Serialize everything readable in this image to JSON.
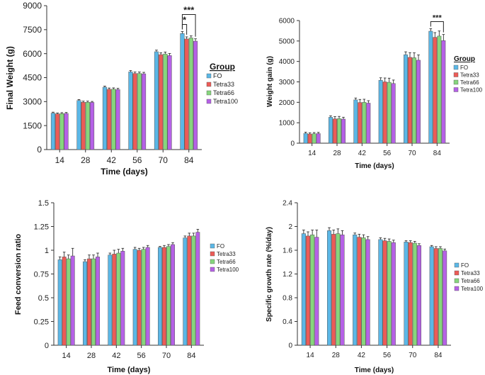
{
  "chart_data": [
    {
      "type": "bar",
      "ylabel": "Final Weight (g)",
      "xlabel": "Time (days)",
      "categories": [
        "14",
        "28",
        "42",
        "56",
        "70",
        "84"
      ],
      "ylim": [
        0,
        9000
      ],
      "yticks": [
        "0",
        "1500",
        "3000",
        "4500",
        "6000",
        "7500",
        "9000"
      ],
      "legend_title": "Group",
      "legend_position": "right",
      "series": [
        {
          "name": "FO",
          "color": "#5bb7e6",
          "values": [
            2280,
            3070,
            3900,
            4860,
            6120,
            7260
          ],
          "errors": [
            60,
            60,
            70,
            80,
            100,
            120
          ]
        },
        {
          "name": "Tetra33",
          "color": "#ec5b57",
          "values": [
            2230,
            2960,
            3770,
            4760,
            5940,
            6920
          ],
          "errors": [
            60,
            70,
            80,
            90,
            110,
            130
          ]
        },
        {
          "name": "Tetra66",
          "color": "#86d67d",
          "values": [
            2250,
            2960,
            3780,
            4760,
            5980,
            6980
          ],
          "errors": [
            60,
            70,
            80,
            90,
            120,
            130
          ]
        },
        {
          "name": "Tetra100",
          "color": "#b561e6",
          "values": [
            2260,
            2950,
            3750,
            4740,
            5880,
            6780
          ],
          "errors": [
            60,
            60,
            80,
            90,
            130,
            150
          ]
        }
      ],
      "annotations": [
        {
          "text": "*",
          "category": "84",
          "from_series": "FO",
          "to_series": "Tetra33"
        },
        {
          "text": "***",
          "category": "84",
          "from_series": "FO",
          "to_series": "Tetra100"
        }
      ]
    },
    {
      "type": "bar",
      "ylabel": "Weight gain (g)",
      "xlabel": "Time (days)",
      "categories": [
        "14",
        "28",
        "42",
        "56",
        "70",
        "84"
      ],
      "ylim": [
        0,
        6000
      ],
      "yticks": [
        "0",
        "1000",
        "2000",
        "3000",
        "4000",
        "5000",
        "6000"
      ],
      "legend_title": "Group",
      "legend_position": "right",
      "series": [
        {
          "name": "FO",
          "color": "#5bb7e6",
          "values": [
            480,
            1270,
            2120,
            3080,
            4330,
            5480
          ],
          "errors": [
            60,
            70,
            90,
            120,
            140,
            120
          ]
        },
        {
          "name": "Tetra33",
          "color": "#ec5b57",
          "values": [
            450,
            1190,
            1990,
            3000,
            4200,
            5180
          ],
          "errors": [
            60,
            110,
            150,
            190,
            230,
            230
          ]
        },
        {
          "name": "Tetra66",
          "color": "#86d67d",
          "values": [
            460,
            1200,
            2000,
            2980,
            4180,
            5240
          ],
          "errors": [
            60,
            110,
            150,
            200,
            240,
            250
          ]
        },
        {
          "name": "Tetra100",
          "color": "#b561e6",
          "values": [
            470,
            1180,
            1960,
            2920,
            4060,
            5020
          ],
          "errors": [
            60,
            90,
            120,
            170,
            260,
            300
          ]
        }
      ],
      "annotations": [
        {
          "text": "***",
          "category": "84",
          "from_series": "FO",
          "to_series": "Tetra100"
        }
      ]
    },
    {
      "type": "bar",
      "ylabel": "Feed conversion ratio",
      "xlabel": "Time (days)",
      "categories": [
        "14",
        "28",
        "42",
        "56",
        "70",
        "84"
      ],
      "ylim": [
        0,
        1.5
      ],
      "yticks": [
        "0",
        "0.25",
        "0.5",
        "0.75",
        "1",
        "1.25",
        "1.5"
      ],
      "legend_position": "right",
      "series": [
        {
          "name": "FO",
          "color": "#5bb7e6",
          "values": [
            0.9,
            0.88,
            0.95,
            1.01,
            1.03,
            1.13
          ],
          "errors": [
            0.03,
            0.02,
            0.02,
            0.02,
            0.01,
            0.02
          ]
        },
        {
          "name": "Tetra33",
          "color": "#ec5b57",
          "values": [
            0.93,
            0.91,
            0.96,
            1.0,
            1.03,
            1.15
          ],
          "errors": [
            0.05,
            0.04,
            0.04,
            0.02,
            0.02,
            0.03
          ]
        },
        {
          "name": "Tetra66",
          "color": "#86d67d",
          "values": [
            0.91,
            0.91,
            0.97,
            1.01,
            1.04,
            1.15
          ],
          "errors": [
            0.04,
            0.04,
            0.04,
            0.02,
            0.02,
            0.03
          ]
        },
        {
          "name": "Tetra100",
          "color": "#b561e6",
          "values": [
            0.94,
            0.93,
            0.99,
            1.03,
            1.06,
            1.19
          ],
          "errors": [
            0.08,
            0.04,
            0.03,
            0.02,
            0.02,
            0.03
          ]
        }
      ]
    },
    {
      "type": "bar",
      "ylabel": "Specific growth rate (%/day)",
      "xlabel": "Time (days)",
      "categories": [
        "14",
        "28",
        "42",
        "56",
        "70",
        "84"
      ],
      "ylim": [
        0,
        2.4
      ],
      "yticks": [
        "0",
        "0.4",
        "0.8",
        "1.2",
        "1.6",
        "2",
        "2.4"
      ],
      "legend_position": "right",
      "series": [
        {
          "name": "FO",
          "color": "#5bb7e6",
          "values": [
            1.88,
            1.93,
            1.86,
            1.78,
            1.74,
            1.66
          ],
          "errors": [
            0.06,
            0.05,
            0.03,
            0.03,
            0.02,
            0.02
          ]
        },
        {
          "name": "Tetra33",
          "color": "#ec5b57",
          "values": [
            1.84,
            1.87,
            1.82,
            1.76,
            1.73,
            1.63
          ],
          "errors": [
            0.07,
            0.07,
            0.05,
            0.04,
            0.03,
            0.03
          ]
        },
        {
          "name": "Tetra66",
          "color": "#86d67d",
          "values": [
            1.86,
            1.88,
            1.81,
            1.75,
            1.72,
            1.63
          ],
          "errors": [
            0.08,
            0.08,
            0.05,
            0.04,
            0.03,
            0.03
          ]
        },
        {
          "name": "Tetra100",
          "color": "#b561e6",
          "values": [
            1.82,
            1.86,
            1.78,
            1.73,
            1.68,
            1.59
          ],
          "errors": [
            0.12,
            0.07,
            0.05,
            0.04,
            0.03,
            0.03
          ]
        }
      ]
    }
  ]
}
